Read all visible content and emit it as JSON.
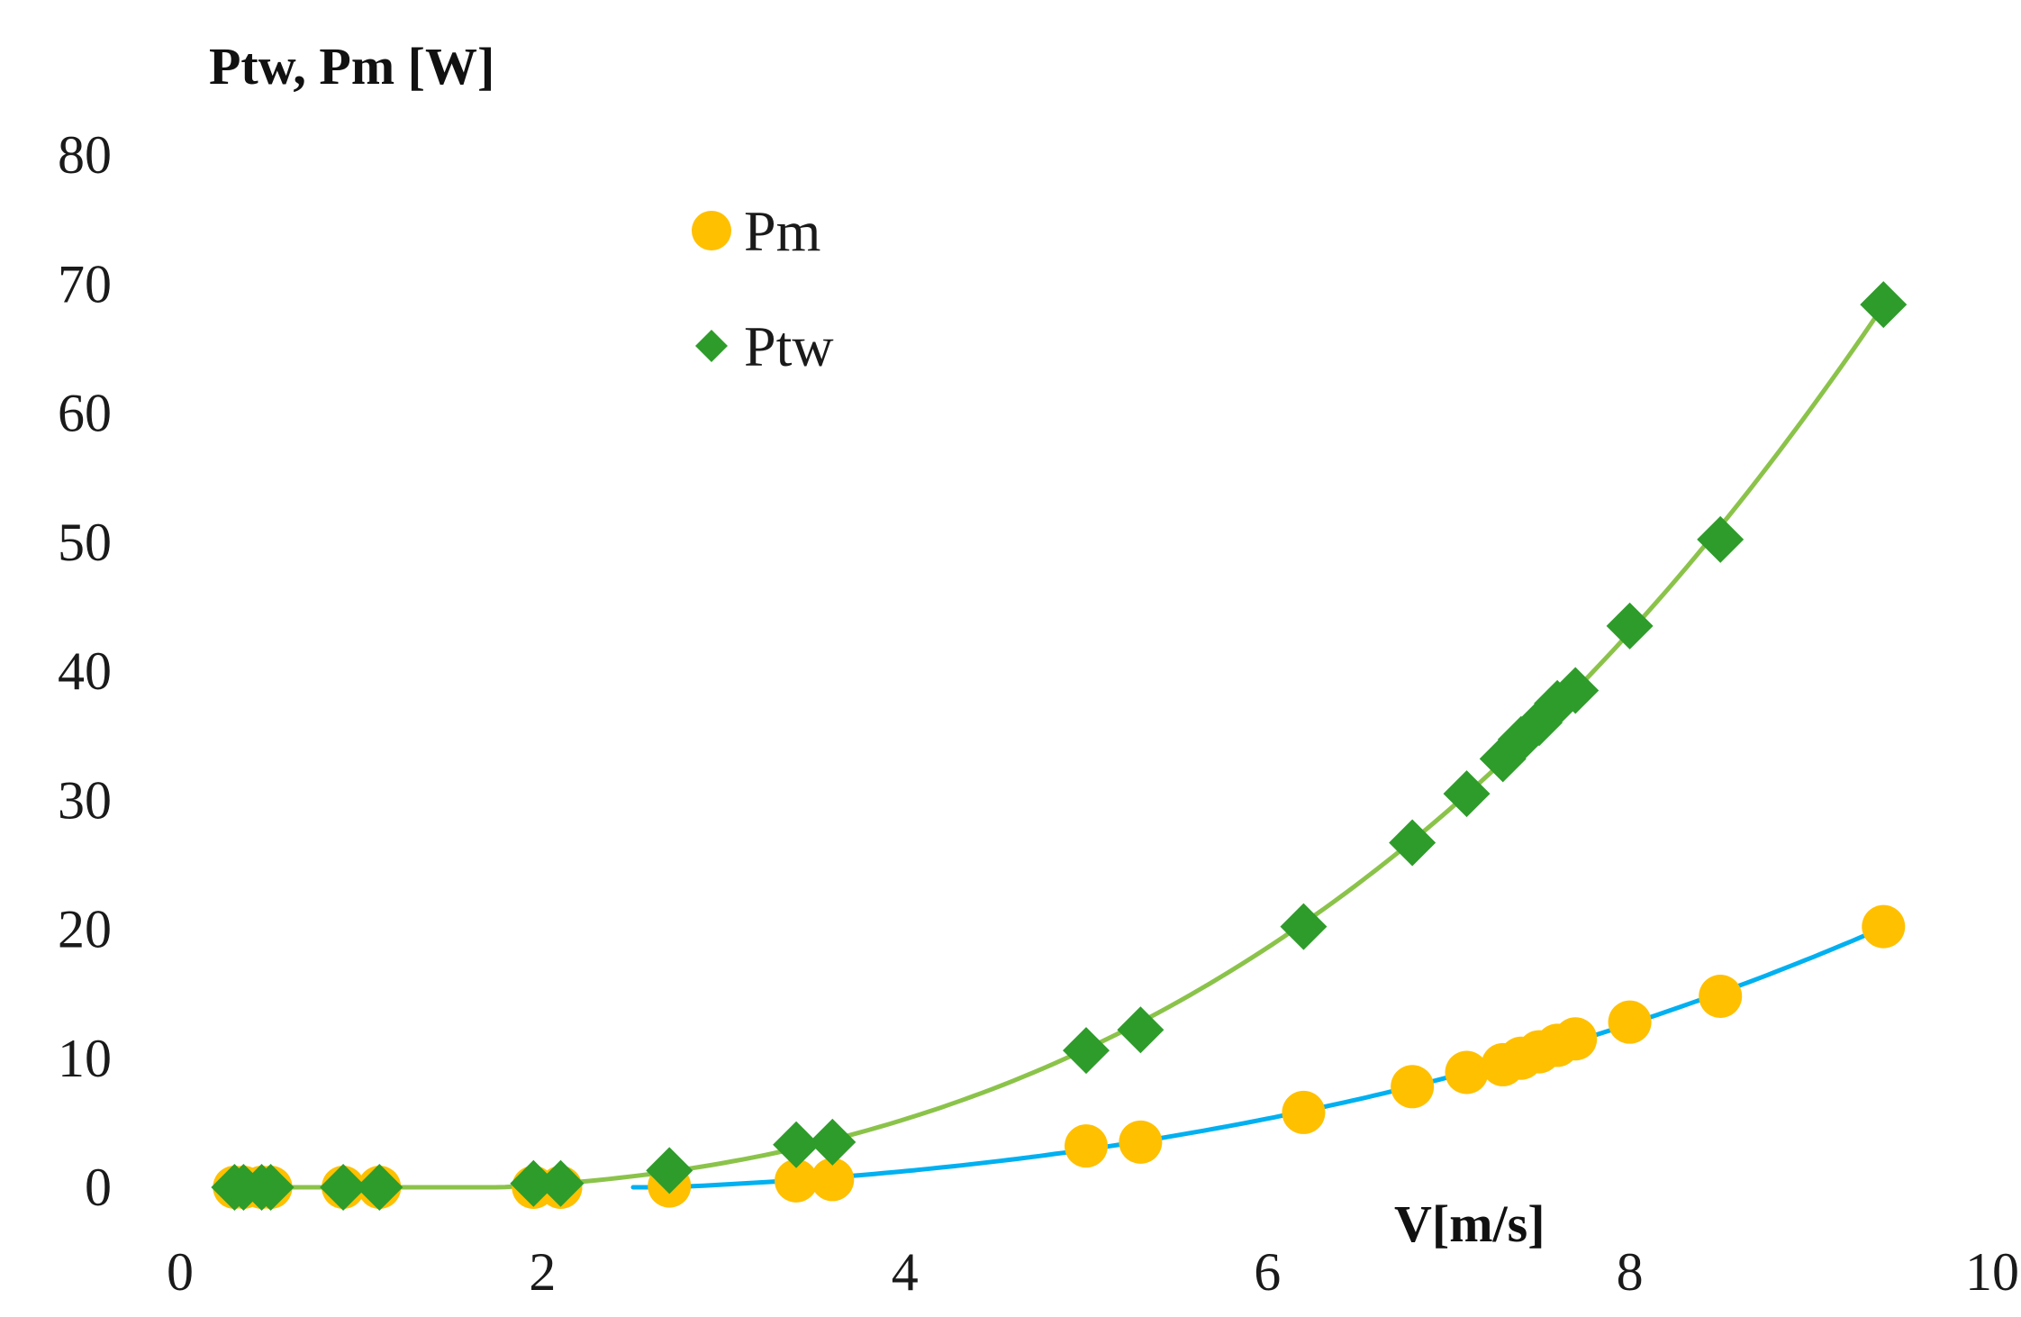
{
  "chart_data": {
    "type": "scatter",
    "title": "",
    "ylabel": "Ptw, Pm [W]",
    "xlabel": "V[m/s]",
    "xlim": [
      0,
      10
    ],
    "ylim": [
      0,
      80
    ],
    "x_ticks": [
      "0",
      "2",
      "4",
      "6",
      "8",
      "10"
    ],
    "y_ticks": [
      "0",
      "10",
      "20",
      "30",
      "40",
      "50",
      "60",
      "70",
      "80"
    ],
    "grid": false,
    "legend_position": "top-center",
    "series": [
      {
        "name": "Pm",
        "marker": "circle",
        "color": "#FFC000",
        "trend_color": "#00B0F0",
        "x": [
          0.3,
          0.35,
          0.45,
          0.5,
          0.9,
          1.1,
          1.95,
          2.1,
          2.7,
          3.4,
          3.6,
          5.0,
          5.3,
          6.2,
          6.8,
          7.1,
          7.3,
          7.4,
          7.5,
          7.6,
          7.7,
          8.0,
          8.5,
          9.4
        ],
        "values": [
          0,
          0,
          0,
          0,
          0,
          0,
          0,
          0,
          0.1,
          0.5,
          0.6,
          3.2,
          3.5,
          5.8,
          7.8,
          8.9,
          9.5,
          10.0,
          10.5,
          11.0,
          11.5,
          12.8,
          14.8,
          20.2
        ],
        "trend": {
          "type": "polynomial",
          "x_start": 2.5,
          "x_end": 9.4
        }
      },
      {
        "name": "Ptw",
        "marker": "diamond",
        "color": "#2E9C2A",
        "trend_color": "#8BC34A",
        "x": [
          0.3,
          0.35,
          0.45,
          0.5,
          0.9,
          1.1,
          1.95,
          2.1,
          2.7,
          3.4,
          3.6,
          5.0,
          5.3,
          6.2,
          6.8,
          7.1,
          7.3,
          7.4,
          7.5,
          7.6,
          7.7,
          8.0,
          8.5,
          9.4
        ],
        "values": [
          0,
          0,
          0,
          0,
          0,
          0,
          0.3,
          0.3,
          1.3,
          3.3,
          3.5,
          10.6,
          12.2,
          20.2,
          26.7,
          30.5,
          33.2,
          34.7,
          36.0,
          37.5,
          38.5,
          43.5,
          50.2,
          68.4
        ],
        "trend": {
          "type": "polynomial",
          "x_start": 0.25,
          "x_end": 9.4
        }
      }
    ]
  }
}
